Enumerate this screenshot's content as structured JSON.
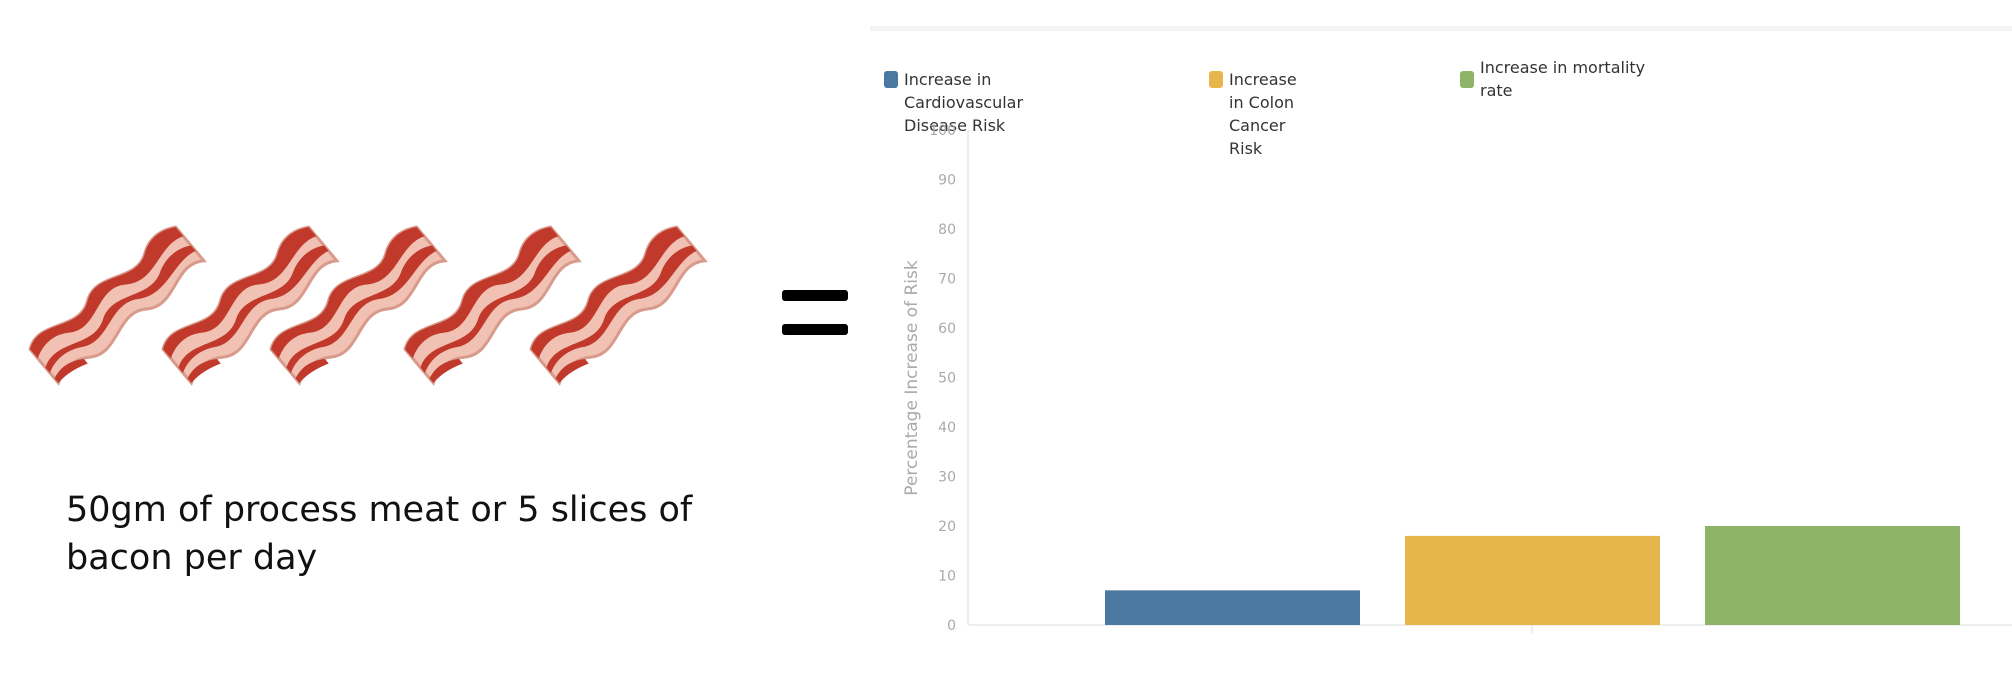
{
  "caption": "50gm of process meat or 5 slices of bacon per day",
  "illustration": {
    "icon": "bacon-icon",
    "count": 5
  },
  "colors": {
    "bacon_dark": "#c0392b",
    "bacon_light": "#f1c2b4",
    "axis": "#dddddd",
    "tick_text": "#aaaaaa"
  },
  "chart_data": {
    "type": "bar",
    "categories": [
      "",
      "",
      ""
    ],
    "series": [
      {
        "name": "Increase in Cardiovascular Disease Risk",
        "value": 7,
        "color": "#4a78a0"
      },
      {
        "name": "Increase in Colon Cancer Risk",
        "value": 18,
        "color": "#e6b64c"
      },
      {
        "name": "Increase in mortality rate",
        "value": 20,
        "color": "#8db467"
      }
    ],
    "xlabel": "",
    "ylabel": "Percentage Increase of Risk",
    "ylim": [
      0,
      100
    ],
    "yticks": [
      "0",
      "10",
      "20",
      "30",
      "40",
      "50",
      "60",
      "70",
      "80",
      "90",
      "100"
    ],
    "grid": false,
    "legend": "top-left"
  }
}
